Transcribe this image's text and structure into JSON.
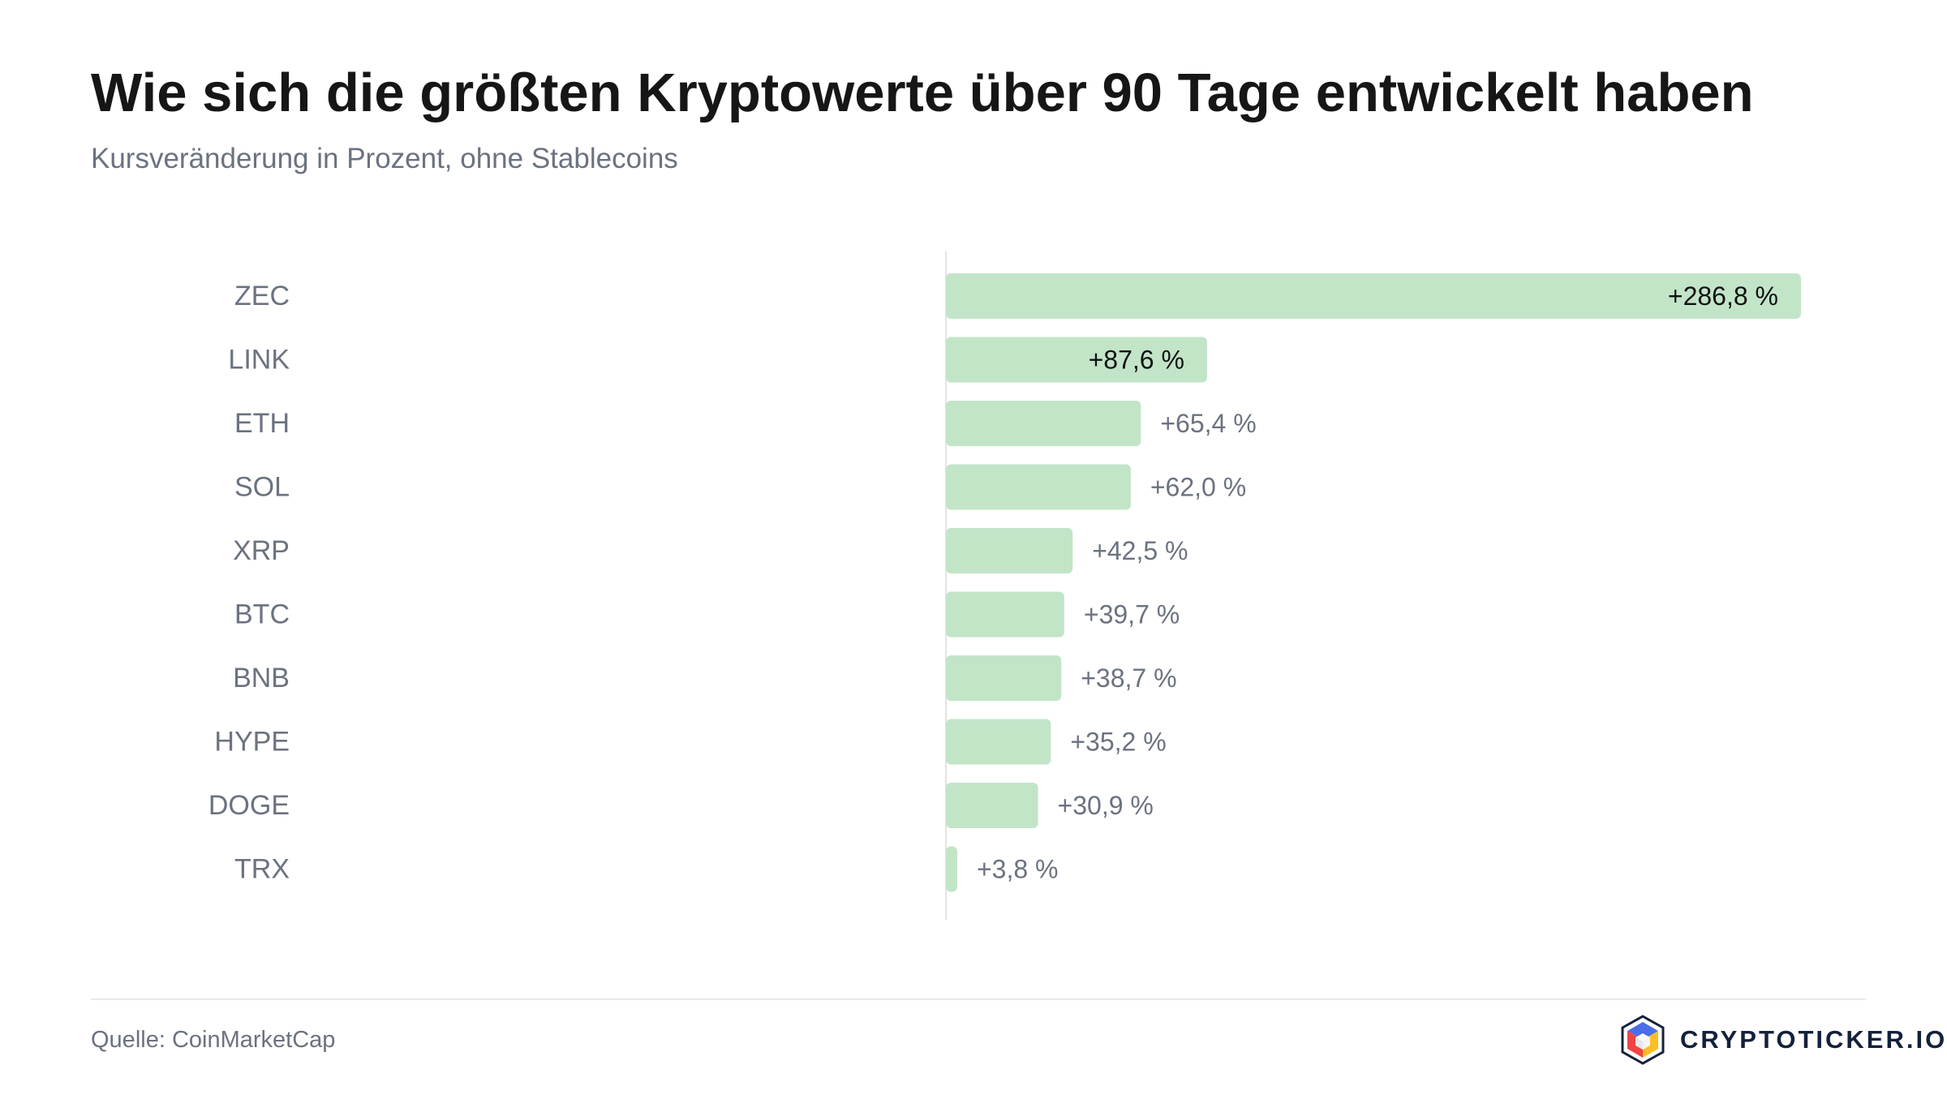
{
  "header": {
    "title": "Wie sich die größten Kryptowerte über 90 Tage entwickelt haben",
    "subtitle": "Kursveränderung in Prozent, ohne Stablecoins"
  },
  "chart_data": {
    "type": "bar",
    "orientation": "horizontal",
    "categories": [
      "ZEC",
      "LINK",
      "ETH",
      "SOL",
      "XRP",
      "BTC",
      "BNB",
      "HYPE",
      "DOGE",
      "TRX"
    ],
    "values": [
      286.8,
      87.6,
      65.4,
      62.0,
      42.5,
      39.7,
      38.7,
      35.2,
      30.9,
      3.8
    ],
    "value_labels": [
      "+286,8 %",
      "+87,6 %",
      "+65,4 %",
      "+62,0 %",
      "+42,5 %",
      "+39,7 %",
      "+38,7 %",
      "+35,2 %",
      "+30,9 %",
      "+3,8 %"
    ],
    "title": "Wie sich die größten Kryptowerte über 90 Tage entwickelt haben",
    "subtitle": "Kursveränderung in Prozent, ohne Stablecoins",
    "xlabel": "",
    "ylabel": "",
    "xlim": [
      0,
      286.8
    ],
    "grid": false,
    "legend": "none",
    "colors": {
      "bar": "#c2e5c8",
      "label_inside": "#111111",
      "label_outside": "#6b7280",
      "category_label": "#6b7280",
      "baseline": "#e3e3e3"
    }
  },
  "footer": {
    "source": "Quelle: CoinMarketCap",
    "brand": "CRYPTOTICKER.IO",
    "brand_logo_icon": "cube-logo-icon"
  }
}
